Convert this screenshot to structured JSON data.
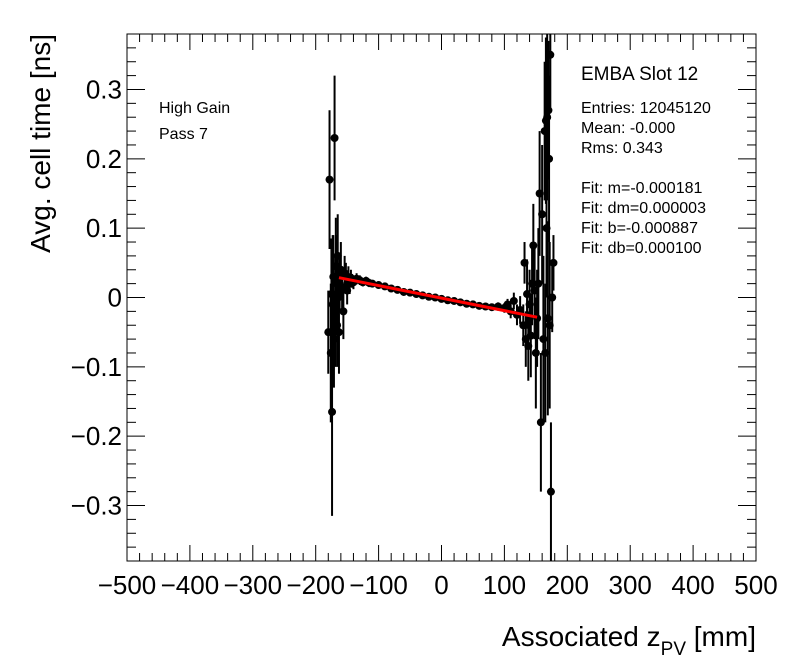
{
  "chart_data": {
    "type": "scatter",
    "title": "",
    "xlabel": {
      "main": "Associated z",
      "sub": "PV",
      "unit": " [mm]"
    },
    "ylabel": "Avg. cell time [ns]",
    "xlim": [
      -500,
      500
    ],
    "ylim": [
      -0.38,
      0.38
    ],
    "x_ticks": [
      -500,
      -400,
      -300,
      -200,
      -100,
      0,
      100,
      200,
      300,
      400,
      500
    ],
    "x_tick_labels": [
      "−500",
      "−400",
      "−300",
      "−200",
      "−100",
      "0",
      "100",
      "200",
      "300",
      "400",
      "500"
    ],
    "y_ticks": [
      -0.3,
      -0.2,
      -0.1,
      0,
      0.1,
      0.2,
      0.3
    ],
    "y_tick_labels": [
      "−0.3",
      "−0.2",
      "−0.1",
      "0",
      "0.1",
      "0.2",
      "0.3"
    ],
    "grid": false,
    "marker_color": "#000000",
    "annotations": [
      "High Gain",
      "Pass 7"
    ],
    "stats_box": {
      "title": "EMBA Slot 12",
      "lines": [
        "Entries: 12045120",
        "Mean: -0.000",
        "Rms: 0.343",
        "",
        "Fit: m=-0.000181",
        "Fit: dm=0.000003",
        "Fit: b=-0.000887",
        "Fit: db=0.000100"
      ]
    },
    "fit_line": {
      "color": "#ff0000",
      "x": [
        -163,
        152
      ],
      "y": [
        0.0286,
        -0.0284
      ]
    },
    "series": [
      {
        "x": [
          -180,
          -178,
          -176,
          -175,
          -174,
          -173,
          -172,
          -171,
          -170,
          -169,
          -168,
          -167,
          -166,
          -165,
          -164,
          -163,
          -162,
          -160,
          -158,
          -156,
          -154,
          -152,
          -150,
          -148,
          -146,
          -144,
          -142,
          -140,
          -135,
          -130,
          -125,
          -120,
          -115,
          -110,
          -100,
          -90,
          -80,
          -70,
          -60,
          -50,
          -40,
          -30,
          -20,
          -10,
          0,
          10,
          20,
          30,
          40,
          50,
          60,
          70,
          80,
          90,
          100,
          105,
          110,
          115,
          120,
          125,
          130,
          132,
          134,
          136,
          138,
          140,
          142,
          144,
          146,
          148,
          150,
          152,
          154,
          156,
          158,
          160,
          162,
          164,
          165,
          166,
          167,
          168,
          169,
          170,
          171,
          172,
          173,
          174,
          176,
          178
        ],
        "y": [
          -0.05,
          0.17,
          -0.08,
          0.005,
          -0.165,
          -0.01,
          0.03,
          -0.06,
          0.23,
          -0.02,
          0.045,
          0.02,
          -0.04,
          0.06,
          0.0,
          -0.05,
          0.02,
          0.04,
          0.01,
          -0.02,
          0.035,
          0.03,
          0.01,
          0.025,
          0.02,
          0.028,
          0.024,
          0.022,
          0.027,
          0.025,
          0.022,
          0.024,
          0.021,
          0.02,
          0.018,
          0.016,
          0.013,
          0.011,
          0.008,
          0.007,
          0.005,
          0.003,
          0.001,
          0.0,
          -0.002,
          -0.004,
          -0.005,
          -0.007,
          -0.009,
          -0.01,
          -0.012,
          -0.013,
          -0.014,
          -0.013,
          -0.015,
          -0.01,
          -0.02,
          -0.005,
          -0.025,
          -0.018,
          -0.04,
          0.05,
          -0.06,
          0.005,
          -0.07,
          -0.01,
          -0.055,
          0.02,
          0.075,
          0.01,
          -0.08,
          -0.03,
          0.02,
          0.15,
          -0.18,
          0.12,
          -0.06,
          0.24,
          -0.08,
          0.255,
          0.1,
          0.26,
          -0.03,
          0.27,
          0.2,
          -0.04,
          0.35,
          -0.28,
          0.0,
          0.05
        ],
        "err": [
          0.06,
          0.1,
          0.1,
          0.08,
          0.15,
          0.1,
          0.06,
          0.07,
          0.09,
          0.08,
          0.07,
          0.07,
          0.06,
          0.06,
          0.05,
          0.06,
          0.04,
          0.04,
          0.03,
          0.04,
          0.025,
          0.02,
          0.02,
          0.02,
          0.015,
          0.012,
          0.01,
          0.01,
          0.008,
          0.007,
          0.006,
          0.006,
          0.006,
          0.005,
          0.005,
          0.004,
          0.004,
          0.004,
          0.004,
          0.004,
          0.004,
          0.004,
          0.004,
          0.004,
          0.004,
          0.004,
          0.004,
          0.004,
          0.004,
          0.004,
          0.004,
          0.004,
          0.005,
          0.006,
          0.007,
          0.008,
          0.01,
          0.012,
          0.015,
          0.02,
          0.03,
          0.03,
          0.04,
          0.05,
          0.05,
          0.05,
          0.06,
          0.06,
          0.06,
          0.07,
          0.08,
          0.07,
          0.08,
          0.09,
          0.1,
          0.1,
          0.12,
          0.1,
          0.1,
          0.12,
          0.1,
          0.12,
          0.14,
          0.1,
          0.12,
          0.12,
          0.08,
          0.1,
          0.05,
          0.04
        ]
      }
    ]
  }
}
